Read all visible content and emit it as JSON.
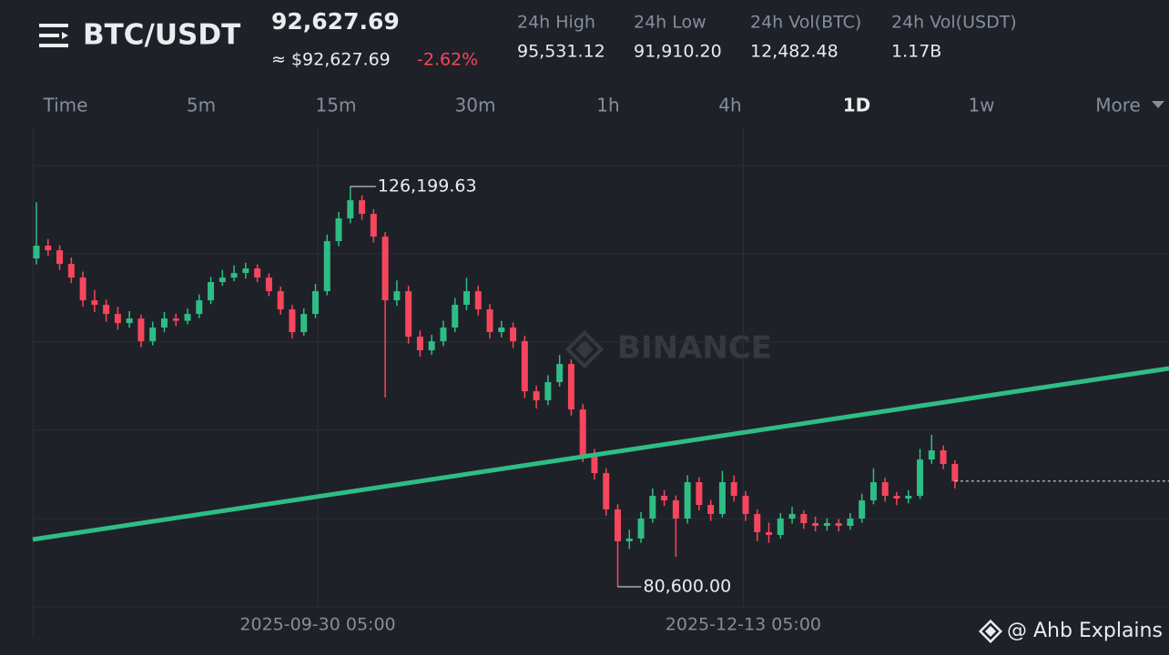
{
  "header": {
    "symbol": "BTC/USDT",
    "price": "92,627.69",
    "approx": "≈ $92,627.69",
    "change": "-2.62%",
    "stats": [
      {
        "label": "24h High",
        "value": "95,531.12"
      },
      {
        "label": "24h Low",
        "value": "91,910.20"
      },
      {
        "label": "24h Vol(BTC)",
        "value": "12,482.48"
      },
      {
        "label": "24h Vol(USDT)",
        "value": "1.17B"
      }
    ]
  },
  "timeframes": {
    "items": [
      "Time",
      "5m",
      "15m",
      "30m",
      "1h",
      "4h",
      "1D",
      "1w",
      "More"
    ],
    "active": "1D"
  },
  "watermark": "BINANCE",
  "credit": "@ Ahb Explains",
  "chart_data": {
    "type": "candlestick",
    "up_color": "#2ebd85",
    "down_color": "#f6465d",
    "ylim": [
      78320,
      132930
    ],
    "xticks": [
      {
        "value": 24.2,
        "label": "2025-09-30 05:00"
      },
      {
        "value": 60.8,
        "label": "2025-12-13 05:00"
      }
    ],
    "high_label": "126,199.63",
    "low_label": "80,600.00",
    "trendline": {
      "color": "#2ebd85",
      "values": [
        85990,
        105470
      ]
    },
    "candles": [
      [
        118000,
        124400,
        117300,
        119450
      ],
      [
        119450,
        120200,
        118300,
        118930
      ],
      [
        118930,
        119500,
        116700,
        117380
      ],
      [
        117380,
        118100,
        115200,
        115820
      ],
      [
        115820,
        116500,
        112500,
        113230
      ],
      [
        113230,
        114400,
        111900,
        112720
      ],
      [
        112720,
        113300,
        110800,
        111680
      ],
      [
        111680,
        112500,
        109900,
        110640
      ],
      [
        110640,
        112000,
        110100,
        111160
      ],
      [
        111160,
        111600,
        107900,
        108570
      ],
      [
        108570,
        110800,
        108100,
        110130
      ],
      [
        110130,
        111900,
        109600,
        111160
      ],
      [
        111160,
        111700,
        110300,
        110900
      ],
      [
        110900,
        112300,
        110500,
        111680
      ],
      [
        111680,
        113900,
        111200,
        113230
      ],
      [
        113230,
        115900,
        112800,
        115310
      ],
      [
        115310,
        116700,
        114900,
        115820
      ],
      [
        115820,
        117200,
        115400,
        116340
      ],
      [
        116340,
        117500,
        115700,
        116860
      ],
      [
        116860,
        117300,
        115300,
        115820
      ],
      [
        115820,
        116300,
        113700,
        114270
      ],
      [
        114270,
        114800,
        111600,
        112200
      ],
      [
        112200,
        112700,
        108900,
        109610
      ],
      [
        109610,
        112300,
        109200,
        111680
      ],
      [
        111680,
        115100,
        111200,
        114270
      ],
      [
        114270,
        120700,
        113800,
        119970
      ],
      [
        119970,
        123300,
        119400,
        122560
      ],
      [
        122560,
        126199.63,
        122000,
        124630
      ],
      [
        124630,
        125200,
        122400,
        123080
      ],
      [
        123080,
        123600,
        119800,
        120490
      ],
      [
        120490,
        121000,
        102150,
        113230
      ],
      [
        113230,
        115500,
        112600,
        114270
      ],
      [
        114270,
        114900,
        108300,
        109090
      ],
      [
        109090,
        109800,
        106800,
        107540
      ],
      [
        107540,
        109300,
        107000,
        108570
      ],
      [
        108570,
        110900,
        108000,
        110130
      ],
      [
        110130,
        113500,
        109600,
        112720
      ],
      [
        112720,
        115800,
        112100,
        114270
      ],
      [
        114270,
        114900,
        111500,
        112200
      ],
      [
        112200,
        112800,
        108900,
        109610
      ],
      [
        109610,
        110900,
        109000,
        110130
      ],
      [
        110130,
        110700,
        107800,
        108570
      ],
      [
        108570,
        109200,
        102100,
        102870
      ],
      [
        102870,
        103500,
        100900,
        101840
      ],
      [
        101840,
        104700,
        101300,
        103910
      ],
      [
        103910,
        107000,
        103400,
        105980
      ],
      [
        105980,
        106500,
        100100,
        100800
      ],
      [
        100800,
        101400,
        94800,
        95620
      ],
      [
        95620,
        96300,
        92800,
        93550
      ],
      [
        93550,
        94100,
        88700,
        89410
      ],
      [
        89410,
        90000,
        80600,
        85780
      ],
      [
        85780,
        87100,
        84900,
        86100
      ],
      [
        86100,
        89100,
        85600,
        88370
      ],
      [
        88370,
        91800,
        87900,
        90960
      ],
      [
        90960,
        91600,
        89800,
        90440
      ],
      [
        90440,
        91000,
        84000,
        88370
      ],
      [
        88370,
        93300,
        87800,
        92510
      ],
      [
        92510,
        93100,
        89300,
        89920
      ],
      [
        89920,
        90500,
        88100,
        88890
      ],
      [
        88890,
        93800,
        88500,
        92510
      ],
      [
        92510,
        93300,
        90300,
        90960
      ],
      [
        90960,
        91500,
        88100,
        88890
      ],
      [
        88890,
        89400,
        85800,
        86820
      ],
      [
        86820,
        87900,
        85600,
        86500
      ],
      [
        86500,
        89000,
        86100,
        88370
      ],
      [
        88370,
        89700,
        87800,
        88890
      ],
      [
        88890,
        89300,
        87200,
        87850
      ],
      [
        87850,
        88600,
        86900,
        87540
      ],
      [
        87540,
        88400,
        87000,
        87850
      ],
      [
        87850,
        88300,
        86900,
        87540
      ],
      [
        87540,
        89000,
        87100,
        88370
      ],
      [
        88370,
        91200,
        87900,
        90440
      ],
      [
        90440,
        94100,
        90000,
        92510
      ],
      [
        92510,
        93000,
        90300,
        90960
      ],
      [
        90960,
        91400,
        89900,
        90650
      ],
      [
        90650,
        91600,
        90100,
        90960
      ],
      [
        90960,
        96300,
        90600,
        95100
      ],
      [
        95100,
        97900,
        94600,
        96140
      ],
      [
        96140,
        96700,
        94000,
        94590
      ],
      [
        94590,
        95000,
        91800,
        92627.69
      ]
    ]
  }
}
